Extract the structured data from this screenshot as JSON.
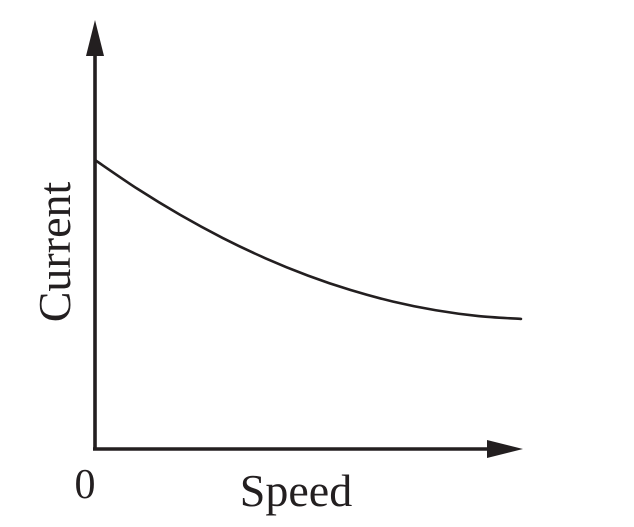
{
  "chart_data": {
    "type": "line",
    "xlabel": "Speed",
    "ylabel": "Current",
    "x_tick_labels": [
      "0"
    ],
    "xlim": [
      0,
      1
    ],
    "ylim": [
      0,
      1
    ],
    "grid": false,
    "legend": "none",
    "axis_color": "#231f20",
    "line_color": "#231f20",
    "series": [
      {
        "x": [
          0,
          0.1,
          0.2,
          0.3,
          0.4,
          0.5,
          0.6,
          0.7,
          0.8,
          0.9,
          1.0
        ],
        "y": [
          1.0,
          0.9,
          0.81,
          0.73,
          0.66,
          0.6,
          0.55,
          0.51,
          0.48,
          0.46,
          0.45
        ]
      }
    ]
  }
}
